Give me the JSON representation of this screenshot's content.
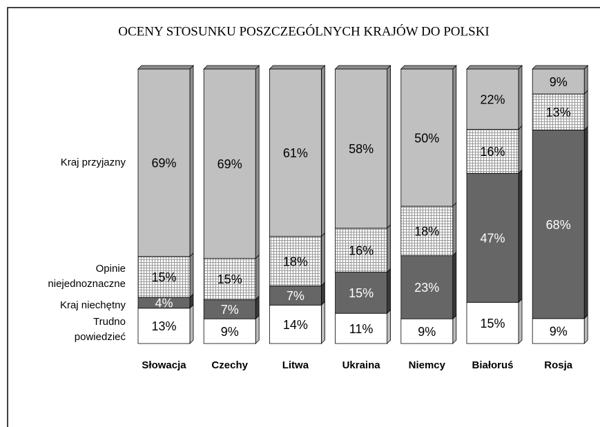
{
  "chart_data": {
    "type": "stacked_bar_3d",
    "title": "OCENY STOSUNKU POSZCZEGÓLNYCH KRAJÓW DO POLSKI",
    "categories": [
      "Słowacja",
      "Czechy",
      "Litwa",
      "Ukraina",
      "Niemcy",
      "Białoruś",
      "Rosja"
    ],
    "series": [
      {
        "name": "Trudno powiedzieć",
        "color": "#ffffff",
        "values": [
          13,
          9,
          14,
          11,
          9,
          15,
          9
        ],
        "value_labels": [
          "13%",
          "9%",
          "14%",
          "11%",
          "9%",
          "15%",
          "9%"
        ]
      },
      {
        "name": "Kraj niechętny",
        "color": "#666666",
        "values": [
          4,
          7,
          7,
          15,
          23,
          47,
          68
        ],
        "value_labels": [
          "4%",
          "7%",
          "7%",
          "15%",
          "23%",
          "47%",
          "68%"
        ]
      },
      {
        "name": "Opinie niejednoznaczne",
        "color": "hatch",
        "values": [
          15,
          15,
          18,
          16,
          18,
          16,
          13
        ],
        "value_labels": [
          "15%",
          "15%",
          "18%",
          "16%",
          "18%",
          "16%",
          "13%"
        ]
      },
      {
        "name": "Kraj przyjazny",
        "color": "#c0c0c0",
        "values": [
          69,
          69,
          61,
          58,
          50,
          22,
          9
        ],
        "value_labels": [
          "69%",
          "69%",
          "61%",
          "58%",
          "50%",
          "22%",
          "9%"
        ]
      }
    ]
  }
}
